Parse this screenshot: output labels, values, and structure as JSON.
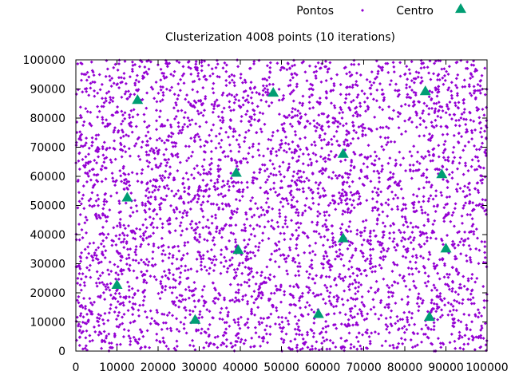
{
  "chart_data": {
    "type": "scatter",
    "title": "Clusterization 4008 points (10 iterations)",
    "xlabel": "",
    "ylabel": "",
    "xlim": [
      0,
      100000
    ],
    "ylim": [
      0,
      100000
    ],
    "x_ticks": [
      "0",
      "10000",
      "20000",
      "30000",
      "40000",
      "50000",
      "60000",
      "70000",
      "80000",
      "90000",
      "100000"
    ],
    "y_ticks": [
      "0",
      "10000",
      "20000",
      "30000",
      "40000",
      "50000",
      "60000",
      "70000",
      "80000",
      "90000",
      "100000"
    ],
    "legend_position": "top",
    "grid": false,
    "series": [
      {
        "name": "Pontos",
        "marker": "dot",
        "color": "#9400d3",
        "count": 4008,
        "distribution": "uniform"
      },
      {
        "name": "Centro",
        "marker": "triangle",
        "color": "#009e73",
        "points": [
          {
            "x": 15000,
            "y": 86000
          },
          {
            "x": 48000,
            "y": 88500
          },
          {
            "x": 85000,
            "y": 89000
          },
          {
            "x": 65000,
            "y": 67500
          },
          {
            "x": 39000,
            "y": 61000
          },
          {
            "x": 89000,
            "y": 60500
          },
          {
            "x": 12500,
            "y": 52500
          },
          {
            "x": 65000,
            "y": 38500
          },
          {
            "x": 39500,
            "y": 34500
          },
          {
            "x": 90000,
            "y": 35000
          },
          {
            "x": 10000,
            "y": 22500
          },
          {
            "x": 29000,
            "y": 10500
          },
          {
            "x": 59000,
            "y": 12500
          },
          {
            "x": 86000,
            "y": 11500
          }
        ]
      }
    ]
  }
}
